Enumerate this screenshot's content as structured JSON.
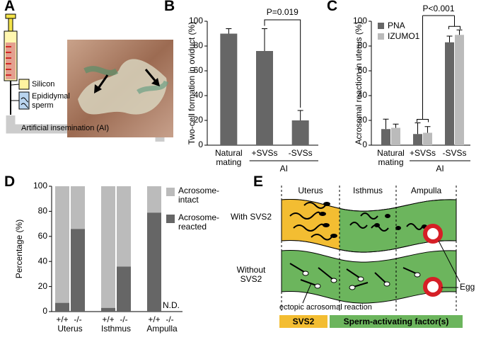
{
  "panel_a": {
    "letter": "A",
    "labels": [
      "Silicon",
      "Epididymal sperm",
      "Artificial insemination (AI)"
    ]
  },
  "panel_e": {
    "letter": "E",
    "regions": [
      "Uterus",
      "Isthmus",
      "Ampulla"
    ],
    "rows": [
      "With SVS2",
      "Without SVS2"
    ],
    "egg": "Egg",
    "ectopic": "ectopic acrosomal reaction",
    "legend": [
      "SVS2",
      "Sperm-activating factor(s)"
    ]
  },
  "chart_data": [
    {
      "panel_label": "B",
      "type": "bar",
      "ylabel": "Two-cell formation in oviduct (%)",
      "categories": [
        "Natural mating",
        "+SVSs",
        "-SVSs"
      ],
      "values": [
        90,
        76,
        20
      ],
      "errors": [
        4,
        18,
        8
      ],
      "color": "#666666",
      "ylim": [
        0,
        100
      ],
      "yticks": [
        0,
        20,
        40,
        60,
        80,
        100
      ],
      "group_label": "AI",
      "annotation": "P=0.019"
    },
    {
      "panel_label": "C",
      "type": "grouped_bar",
      "ylabel": "Acrosomal reaction in uterus (%)",
      "categories": [
        "Natural mating",
        "+SVSs",
        "-SVSs"
      ],
      "series": [
        {
          "name": "PNA",
          "color": "#666666",
          "values": [
            13,
            9,
            83
          ],
          "errors": [
            8,
            9,
            5
          ]
        },
        {
          "name": "IZUMO1",
          "color": "#bbbbbb",
          "values": [
            14,
            10,
            89
          ],
          "errors": [
            3,
            5,
            4
          ]
        }
      ],
      "ylim": [
        0,
        100
      ],
      "yticks": [
        0,
        20,
        40,
        60,
        80,
        100
      ],
      "group_label": "AI",
      "annotation": "P<0.001"
    },
    {
      "panel_label": "D",
      "type": "stacked_bar",
      "ylabel": "Percentage (%)",
      "categories": [
        "+/+",
        "-/-",
        "+/+",
        "-/-",
        "+/+",
        "-/-"
      ],
      "groups": [
        "Uterus",
        "Isthmus",
        "Ampulla"
      ],
      "series": [
        {
          "name": "Acrosome-intact",
          "color": "#bbbbbb",
          "values": [
            93,
            34,
            97,
            64,
            21,
            null
          ]
        },
        {
          "name": "Acrosome-reacted",
          "color": "#666666",
          "values": [
            7,
            66,
            3,
            36,
            79,
            null
          ]
        }
      ],
      "ylim": [
        0,
        100
      ],
      "yticks": [
        0,
        20,
        40,
        60,
        80,
        100
      ],
      "annotation": "N.D."
    }
  ]
}
